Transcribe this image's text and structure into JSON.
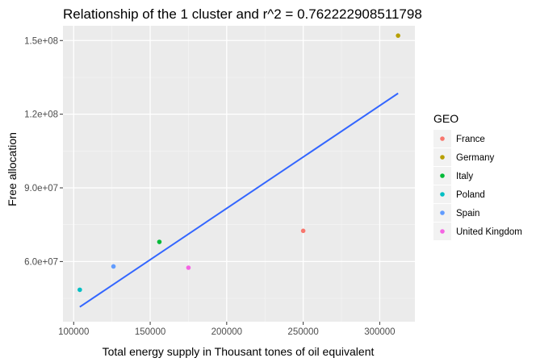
{
  "chart_data": {
    "type": "scatter",
    "title": "Relationship of the 1  cluster and r^2 =  0.762222908511798",
    "xlabel": "Total energy supply in Thousant tones of oil equivalent",
    "ylabel": "Free allocation",
    "xlim": [
      93000,
      323000
    ],
    "ylim": [
      35500000,
      156000000
    ],
    "x_ticks": [
      100000,
      150000,
      200000,
      250000,
      300000
    ],
    "x_tick_labels": [
      "100000",
      "150000",
      "200000",
      "250000",
      "300000"
    ],
    "y_ticks": [
      60000000,
      90000000,
      120000000,
      150000000
    ],
    "y_tick_labels": [
      "6.0e+07",
      "9.0e+07",
      "1.2e+08",
      "1.5e+08"
    ],
    "grid": true,
    "legend": {
      "title": "GEO",
      "placement": "right",
      "entries": [
        {
          "name": "France",
          "color": "#F8766D"
        },
        {
          "name": "Germany",
          "color": "#B79F00"
        },
        {
          "name": "Italy",
          "color": "#00BA38"
        },
        {
          "name": "Poland",
          "color": "#00BFC4"
        },
        {
          "name": "Spain",
          "color": "#619CFF"
        },
        {
          "name": "United Kingdom",
          "color": "#F564E3"
        }
      ]
    },
    "points": [
      {
        "geo": "France",
        "x": 250000,
        "y": 72500000
      },
      {
        "geo": "Germany",
        "x": 312000,
        "y": 152000000
      },
      {
        "geo": "Italy",
        "x": 156000,
        "y": 68000000
      },
      {
        "geo": "Poland",
        "x": 104000,
        "y": 48500000
      },
      {
        "geo": "Spain",
        "x": 126000,
        "y": 58000000
      },
      {
        "geo": "United Kingdom",
        "x": 175000,
        "y": 57500000
      }
    ],
    "fit_line": {
      "color": "#3366FF",
      "x": [
        104000,
        312000
      ],
      "y": [
        41500000,
        128500000
      ]
    }
  }
}
